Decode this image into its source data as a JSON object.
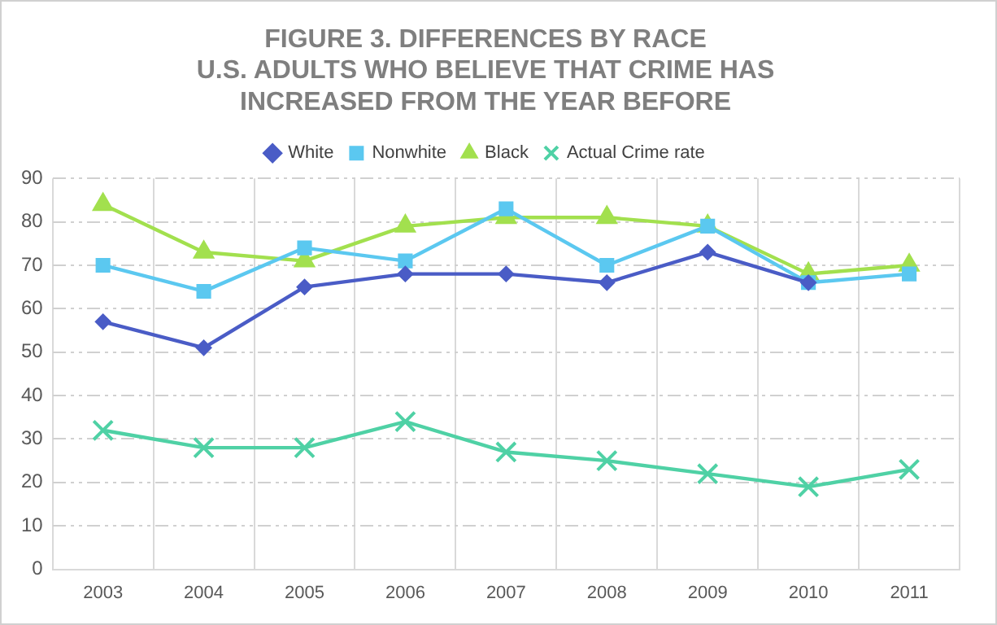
{
  "chart_data": {
    "type": "line",
    "title": "FIGURE 3. DIFFERENCES BY RACE\nU.S. ADULTS WHO BELIEVE THAT CRIME HAS\nINCREASED FROM THE YEAR BEFORE",
    "categories": [
      "2003",
      "2004",
      "2005",
      "2006",
      "2007",
      "2008",
      "2009",
      "2010",
      "2011"
    ],
    "series": [
      {
        "name": "White",
        "color": "#4a5cc6",
        "marker": "diamond",
        "values": [
          57,
          51,
          65,
          68,
          68,
          66,
          73,
          66,
          null
        ]
      },
      {
        "name": "Nonwhite",
        "color": "#5bc8f0",
        "marker": "square",
        "values": [
          70,
          64,
          74,
          71,
          83,
          70,
          79,
          66,
          68
        ]
      },
      {
        "name": "Black",
        "color": "#a2e04e",
        "marker": "triangle",
        "values": [
          84,
          73,
          71,
          79,
          81,
          81,
          79,
          68,
          70
        ]
      },
      {
        "name": "Actual Crime rate",
        "color": "#4fd1a5",
        "marker": "cross",
        "values": [
          32,
          28,
          28,
          34,
          27,
          25,
          22,
          19,
          23
        ]
      }
    ],
    "ylim": [
      0,
      90
    ],
    "yticks": [
      0,
      10,
      20,
      30,
      40,
      50,
      60,
      70,
      80,
      90
    ],
    "grid": true,
    "legend": "top",
    "line_style": "solid"
  }
}
